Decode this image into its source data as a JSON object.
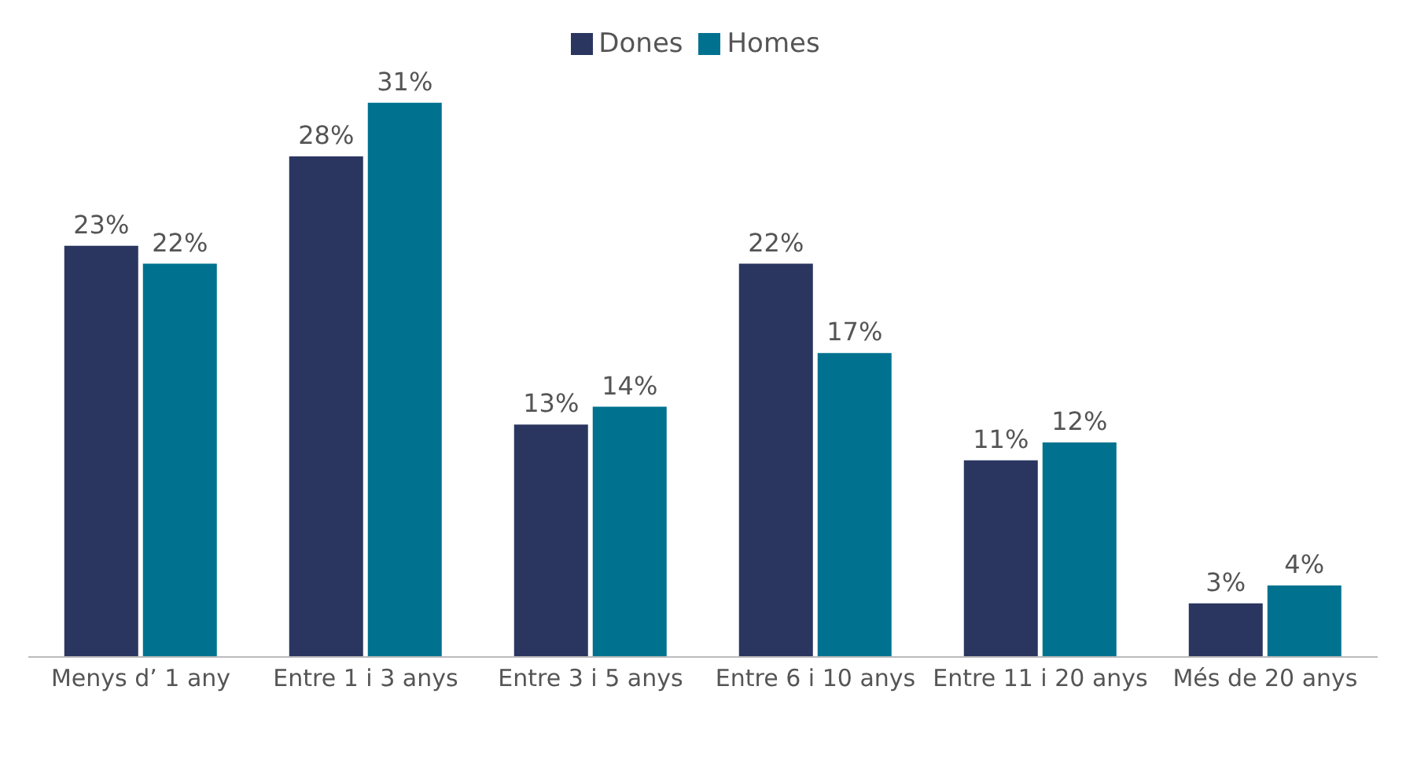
{
  "chart_data": {
    "type": "bar",
    "categories": [
      "Menys d’ 1 any",
      "Entre 1 i 3 anys",
      "Entre 3 i 5 anys",
      "Entre 6 i 10 anys",
      "Entre 11 i 20 anys",
      "Més de 20 anys"
    ],
    "series": [
      {
        "name": "Dones",
        "color": "#2b3660",
        "values": [
          23,
          28,
          13,
          22,
          11,
          3
        ],
        "value_labels": [
          "23%",
          "28%",
          "13%",
          "22%",
          "11%",
          "3%"
        ]
      },
      {
        "name": "Homes",
        "color": "#00728f",
        "values": [
          22,
          31,
          14,
          17,
          12,
          4
        ],
        "value_labels": [
          "22%",
          "31%",
          "14%",
          "17%",
          "12%",
          "4%"
        ]
      }
    ],
    "legend": "top",
    "grid": false
  }
}
